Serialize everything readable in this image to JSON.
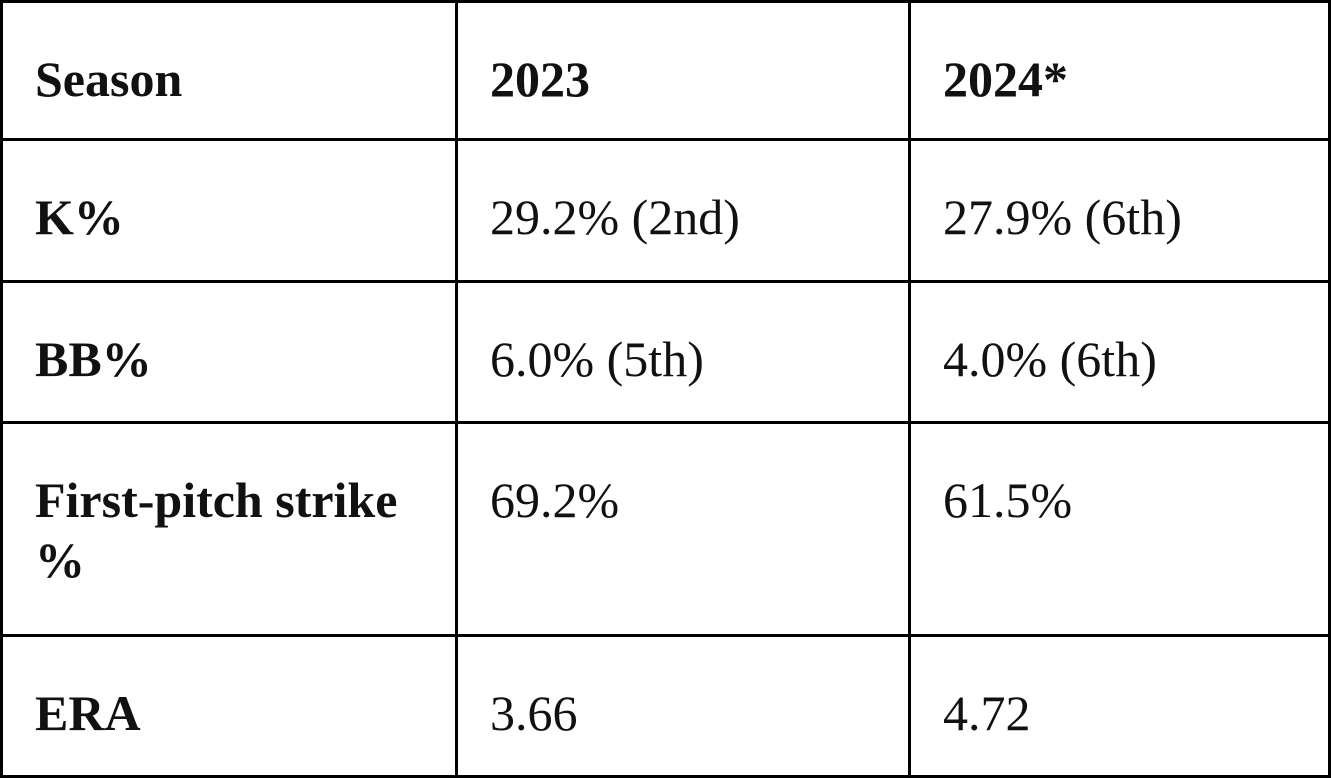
{
  "table": {
    "header": [
      "Season",
      "2023",
      "2024*"
    ],
    "rows": [
      [
        "K%",
        "29.2% (2nd)",
        "27.9% (6th)"
      ],
      [
        "BB%",
        "6.0% (5th)",
        "4.0% (6th)"
      ],
      [
        "First-pitch strike %",
        "69.2%",
        "61.5%"
      ],
      [
        "ERA",
        "3.66",
        "4.72"
      ]
    ]
  }
}
